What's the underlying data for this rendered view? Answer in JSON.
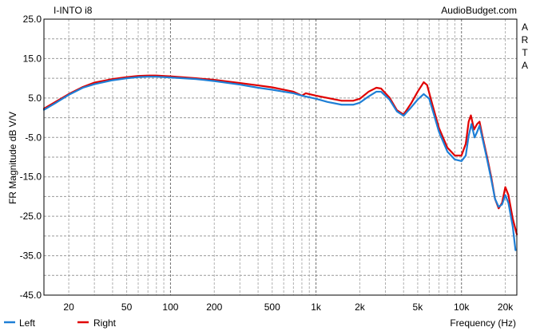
{
  "chart_data": {
    "type": "line",
    "title": "I-INTO i8",
    "watermark": "AudioBudget.com",
    "side_text": "ARTA",
    "xlabel": "Frequency (Hz)",
    "ylabel": "FR Magnitude dB V/V",
    "xscale": "log",
    "xlim": [
      13.5,
      24000
    ],
    "ylim": [
      -45,
      25
    ],
    "grid": true,
    "legend_position": "bottom-left",
    "x_tick_labels": [
      {
        "value": 20,
        "label": "20"
      },
      {
        "value": 50,
        "label": "50"
      },
      {
        "value": 100,
        "label": "100"
      },
      {
        "value": 200,
        "label": "200"
      },
      {
        "value": 500,
        "label": "500"
      },
      {
        "value": 1000,
        "label": "1k"
      },
      {
        "value": 2000,
        "label": "2k"
      },
      {
        "value": 5000,
        "label": "5k"
      },
      {
        "value": 10000,
        "label": "10k"
      },
      {
        "value": 20000,
        "label": "20k"
      }
    ],
    "y_tick_labels": [
      {
        "value": 25,
        "label": "25.0"
      },
      {
        "value": 15,
        "label": "15.0"
      },
      {
        "value": 5,
        "label": "5.0"
      },
      {
        "value": -5,
        "label": "-5.0"
      },
      {
        "value": -15,
        "label": "-15.0"
      },
      {
        "value": -25,
        "label": "-25.0"
      },
      {
        "value": -35,
        "label": "-35.0"
      },
      {
        "value": -45,
        "label": "-45.0"
      }
    ],
    "series": [
      {
        "name": "Left",
        "color": "#1e7fd6",
        "points": [
          [
            13.5,
            2.0
          ],
          [
            16,
            3.6
          ],
          [
            20,
            5.8
          ],
          [
            25,
            7.6
          ],
          [
            30,
            8.5
          ],
          [
            40,
            9.5
          ],
          [
            50,
            10.0
          ],
          [
            60,
            10.3
          ],
          [
            70,
            10.4
          ],
          [
            80,
            10.4
          ],
          [
            100,
            10.2
          ],
          [
            150,
            9.8
          ],
          [
            200,
            9.3
          ],
          [
            300,
            8.4
          ],
          [
            400,
            7.6
          ],
          [
            500,
            7.1
          ],
          [
            600,
            6.6
          ],
          [
            700,
            6.2
          ],
          [
            800,
            5.6
          ],
          [
            1000,
            4.8
          ],
          [
            1200,
            4.0
          ],
          [
            1500,
            3.3
          ],
          [
            1800,
            3.3
          ],
          [
            2000,
            3.8
          ],
          [
            2300,
            5.4
          ],
          [
            2600,
            6.6
          ],
          [
            2800,
            6.6
          ],
          [
            3200,
            4.6
          ],
          [
            3600,
            1.6
          ],
          [
            4000,
            0.5
          ],
          [
            4500,
            2.6
          ],
          [
            5000,
            4.6
          ],
          [
            5500,
            6.0
          ],
          [
            6000,
            4.8
          ],
          [
            6500,
            0.5
          ],
          [
            7000,
            -3.6
          ],
          [
            8000,
            -8.6
          ],
          [
            9000,
            -10.6
          ],
          [
            10000,
            -11.0
          ],
          [
            10700,
            -9.6
          ],
          [
            11200,
            -4.6
          ],
          [
            11700,
            -1.6
          ],
          [
            12300,
            -5.0
          ],
          [
            12800,
            -3.6
          ],
          [
            13300,
            -2.0
          ],
          [
            14000,
            -5.6
          ],
          [
            15000,
            -10.6
          ],
          [
            16000,
            -15.6
          ],
          [
            17000,
            -20.6
          ],
          [
            18000,
            -22.6
          ],
          [
            19000,
            -22.0
          ],
          [
            20000,
            -19.6
          ],
          [
            21000,
            -21.6
          ],
          [
            22500,
            -27.6
          ],
          [
            23500,
            -33.6
          ]
        ]
      },
      {
        "name": "Right",
        "color": "#e00000",
        "points": [
          [
            13.5,
            2.3
          ],
          [
            16,
            3.9
          ],
          [
            20,
            6.0
          ],
          [
            25,
            7.8
          ],
          [
            30,
            8.9
          ],
          [
            40,
            9.8
          ],
          [
            50,
            10.3
          ],
          [
            60,
            10.6
          ],
          [
            70,
            10.7
          ],
          [
            80,
            10.7
          ],
          [
            100,
            10.5
          ],
          [
            150,
            10.0
          ],
          [
            200,
            9.6
          ],
          [
            300,
            8.8
          ],
          [
            400,
            8.2
          ],
          [
            500,
            7.7
          ],
          [
            600,
            7.1
          ],
          [
            700,
            6.6
          ],
          [
            800,
            5.6
          ],
          [
            850,
            6.2
          ],
          [
            1000,
            5.6
          ],
          [
            1200,
            5.0
          ],
          [
            1500,
            4.3
          ],
          [
            1800,
            4.3
          ],
          [
            2000,
            4.8
          ],
          [
            2300,
            6.6
          ],
          [
            2600,
            7.6
          ],
          [
            2800,
            7.4
          ],
          [
            3200,
            5.1
          ],
          [
            3600,
            1.9
          ],
          [
            4000,
            0.8
          ],
          [
            4500,
            3.6
          ],
          [
            5000,
            6.6
          ],
          [
            5500,
            9.0
          ],
          [
            5800,
            8.3
          ],
          [
            6300,
            3.4
          ],
          [
            7000,
            -2.6
          ],
          [
            8000,
            -7.6
          ],
          [
            9000,
            -9.6
          ],
          [
            10000,
            -9.6
          ],
          [
            10700,
            -6.6
          ],
          [
            11200,
            -1.0
          ],
          [
            11600,
            0.6
          ],
          [
            12200,
            -3.0
          ],
          [
            12800,
            -1.6
          ],
          [
            13300,
            -1.0
          ],
          [
            14000,
            -5.0
          ],
          [
            15000,
            -10.0
          ],
          [
            16000,
            -15.0
          ],
          [
            17000,
            -20.6
          ],
          [
            18000,
            -23.0
          ],
          [
            19000,
            -21.6
          ],
          [
            20000,
            -17.6
          ],
          [
            21000,
            -19.6
          ],
          [
            22500,
            -25.6
          ],
          [
            24000,
            -29.6
          ]
        ]
      }
    ]
  }
}
